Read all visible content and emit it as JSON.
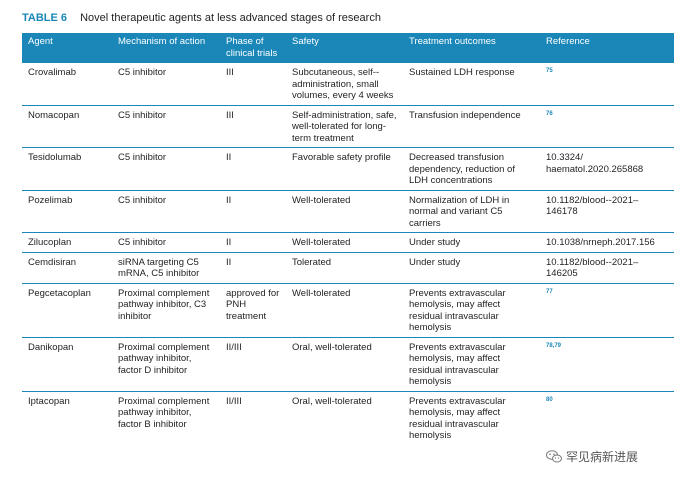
{
  "caption": {
    "label": "TABLE 6",
    "title": "Novel therapeutic agents at less advanced stages of research"
  },
  "headers": [
    "Agent",
    "Mechanism of action",
    "Phase of clinical trials",
    "Safety",
    "Treatment outcomes",
    "Reference"
  ],
  "rows": [
    {
      "agent": "Crovalimab",
      "mechanism": "C5 inhibitor",
      "phase": "III",
      "safety": "Subcutaneous, self--administration, small volumes, every 4 weeks",
      "outcomes": "Sustained LDH response",
      "reference": "75",
      "ref_sup": true
    },
    {
      "agent": "Nomacopan",
      "mechanism": "C5 inhibitor",
      "phase": "III",
      "safety": "Self-administration, safe, well-tolerated for long-term treatment",
      "outcomes": "Transfusion independence",
      "reference": "76",
      "ref_sup": true
    },
    {
      "agent": "Tesidolumab",
      "mechanism": "C5 inhibitor",
      "phase": "II",
      "safety": "Favorable safety profile",
      "outcomes": "Decreased transfusion dependency, reduction of LDH concentrations",
      "reference": "10.3324/ haematol.2020.265868",
      "ref_sup": false
    },
    {
      "agent": "Pozelimab",
      "mechanism": "C5 inhibitor",
      "phase": "II",
      "safety": "Well-tolerated",
      "outcomes": "Normalization of LDH in normal and variant C5 carriers",
      "reference": "10.1182/blood--2021–146178",
      "ref_sup": false
    },
    {
      "agent": "Zilucoplan",
      "mechanism": "C5 inhibitor",
      "phase": "II",
      "safety": "Well-tolerated",
      "outcomes": "Under study",
      "reference": "10.1038/nrneph.2017.156",
      "ref_sup": false
    },
    {
      "agent": "Cemdisiran",
      "mechanism": "siRNA targeting C5 mRNA, C5 inhibitor",
      "phase": "II",
      "safety": "Tolerated",
      "outcomes": "Under study",
      "reference": "10.1182/blood--2021–146205",
      "ref_sup": false
    },
    {
      "agent": "Pegcetacoplan",
      "mechanism": "Proximal complement pathway inhibitor, C3 inhibitor",
      "phase": "approved for PNH treatment",
      "safety": "Well-tolerated",
      "outcomes": "Prevents extravascular hemolysis, may affect residual intravascular hemolysis",
      "reference": "77",
      "ref_sup": true
    },
    {
      "agent": "Danikopan",
      "mechanism": "Proximal complement pathway inhibitor, factor D inhibitor",
      "phase": "II/III",
      "safety": "Oral, well-tolerated",
      "outcomes": "Prevents extravascular hemolysis, may affect residual intravascular hemolysis",
      "reference": "78,79",
      "ref_sup": true
    },
    {
      "agent": "Iptacopan",
      "mechanism": "Proximal complement pathway inhibitor, factor B inhibitor",
      "phase": "II/III",
      "safety": "Oral, well-tolerated",
      "outcomes": "Prevents extravascular hemolysis, may affect residual intravascular hemolysis",
      "reference": "80",
      "ref_sup": true
    }
  ],
  "watermark": {
    "text": "罕见病新进展",
    "icon": "wechat-icon"
  },
  "colors": {
    "accent": "#1a87b8"
  }
}
